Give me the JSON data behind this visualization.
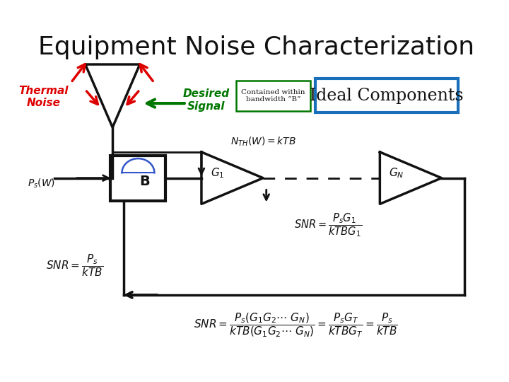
{
  "title": "Equipment Noise Characterization",
  "title_fontsize": 26,
  "background_color": "#ffffff",
  "thermal_noise_label": "Thermal\nNoise",
  "desired_signal_label": "Desired\nSignal",
  "bandwidth_box_text": "Contained within\nbandwidth “B”",
  "ideal_components_text": "Ideal Components",
  "nth_label": "$N_{TH}(W) = kTB$",
  "ps_label": "$P_s(W)$",
  "g1_label": "$G_1$",
  "gn_label": "$G_N$",
  "b_label": "B",
  "snr1": "$SNR = \\dfrac{P_s}{kTB}$",
  "snr2": "$SNR = \\dfrac{P_s G_1}{kTBG_1}$",
  "snr3": "$SNR = \\dfrac{P_s(G_1G_2\\cdots\\ G_N)}{kTB(G_1G_2\\cdots\\ G_N)} = \\dfrac{P_sG_T}{kTBG_T} = \\dfrac{P_s}{kTB}$",
  "red": "#dd0000",
  "green": "#007700",
  "blue_box": "#1a6fba",
  "black": "#111111"
}
